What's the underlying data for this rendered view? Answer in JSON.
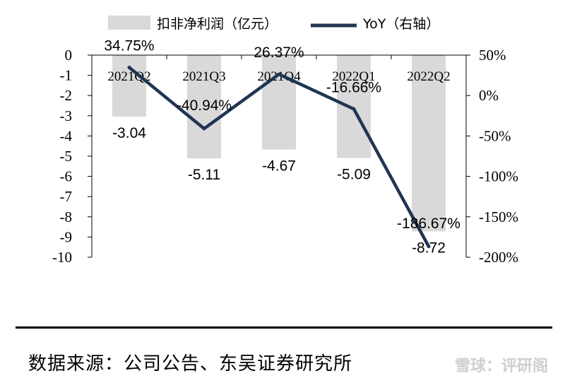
{
  "chart_data": {
    "type": "bar",
    "categories": [
      "2021Q2",
      "2021Q3",
      "2021Q4",
      "2022Q1",
      "2022Q2"
    ],
    "series": [
      {
        "name": "扣非净利润（亿元）",
        "type": "bar",
        "axis": "left",
        "values": [
          -3.04,
          -5.11,
          -4.67,
          -5.09,
          -8.72
        ],
        "labels": [
          "-3.04",
          "-5.11",
          "-4.67",
          "-5.09",
          "-8.72"
        ],
        "color": "#d9d9d9"
      },
      {
        "name": "YoY（右轴）",
        "type": "line",
        "axis": "right",
        "values": [
          34.75,
          -40.94,
          26.37,
          -16.66,
          -186.67
        ],
        "labels": [
          "34.75%",
          "-40.94%",
          "26.37%",
          "-16.66%",
          "-186.67%"
        ],
        "color": "#1f3552"
      }
    ],
    "y_left": {
      "ylim": [
        -10,
        0
      ],
      "ticks": [
        0,
        -1,
        -2,
        -3,
        -4,
        -5,
        -6,
        -7,
        -8,
        -9,
        -10
      ],
      "tick_labels": [
        "0",
        "-1",
        "-2",
        "-3",
        "-4",
        "-5",
        "-6",
        "-7",
        "-8",
        "-9",
        "-10"
      ]
    },
    "y_right": {
      "ylim": [
        -200,
        50
      ],
      "ticks": [
        50,
        0,
        -50,
        -100,
        -150,
        -200
      ],
      "tick_labels": [
        "50%",
        "0%",
        "-50%",
        "-100%",
        "-150%",
        "-200%"
      ]
    },
    "legend": "top",
    "grid": false
  },
  "footer": {
    "source": "数据来源：公司公告、东吴证券研究所",
    "watermark": "雪球：评研阁"
  }
}
